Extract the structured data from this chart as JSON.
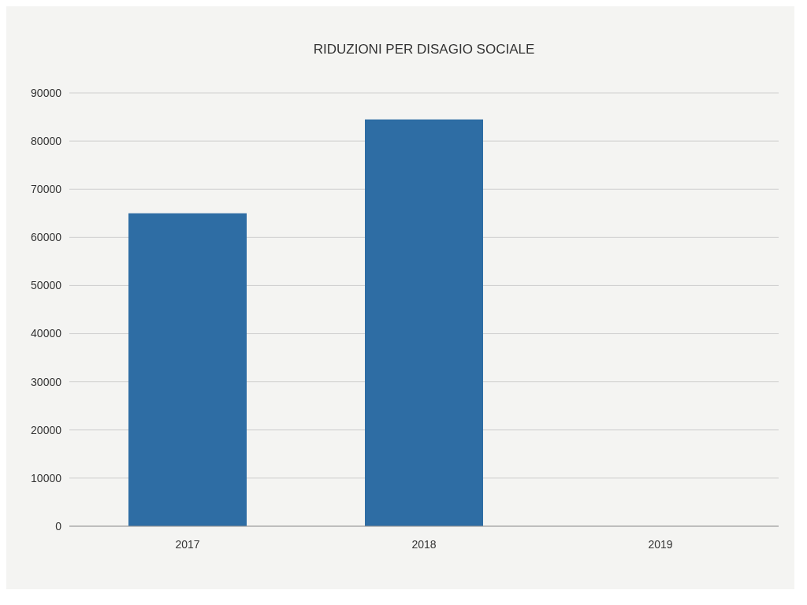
{
  "chart_data": {
    "type": "bar",
    "title": "RIDUZIONI PER DISAGIO SOCIALE",
    "categories": [
      "2017",
      "2018",
      "2019"
    ],
    "values": [
      65000,
      84500,
      null
    ],
    "color": "#2e6da4",
    "ylim": [
      0,
      90000
    ],
    "yticks": [
      0,
      10000,
      20000,
      30000,
      40000,
      50000,
      60000,
      70000,
      80000,
      90000
    ],
    "grid": "y"
  }
}
